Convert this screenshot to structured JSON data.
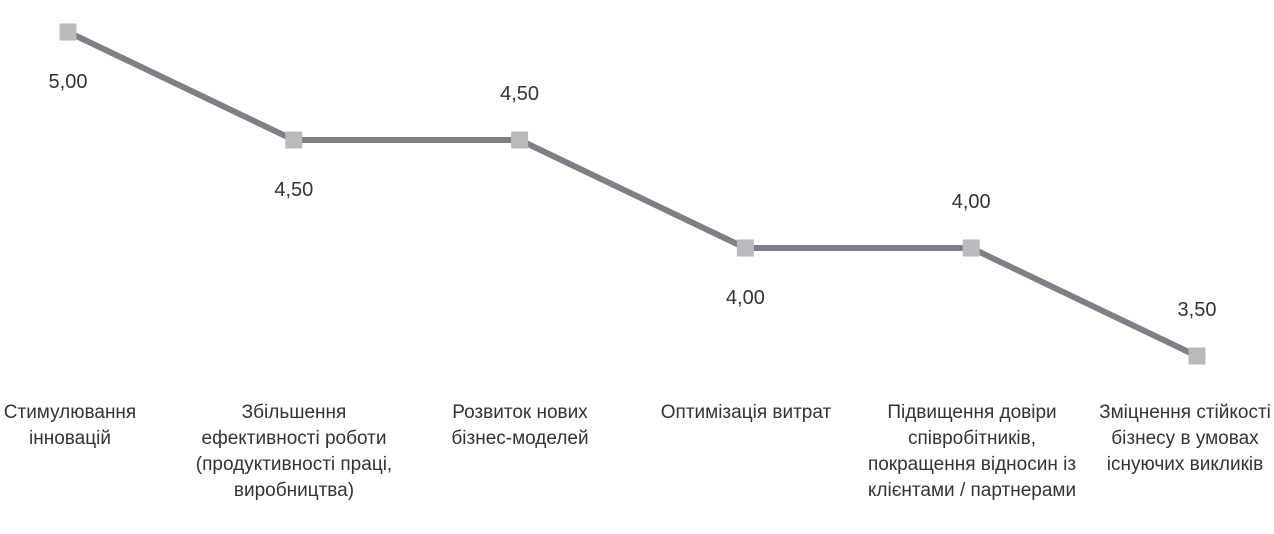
{
  "chart_data": {
    "type": "line",
    "title": "",
    "xlabel": "",
    "ylabel": "",
    "categories": [
      "Стимулювання\nінновацій",
      "Збільшення\nефективності роботи\n(продуктивності праці,\nвиробництва)",
      "Розвиток нових\nбізнес-моделей",
      "Оптимізація витрат",
      "Підвищення довіри\nспівробітників,\nпокращення відносин із\nклієнтами / партнерами",
      "Зміцнення стійкості\nбізнесу в умовах\nіснуючих викликів"
    ],
    "values": [
      5.0,
      4.5,
      4.5,
      4.0,
      4.0,
      3.5
    ],
    "value_labels": [
      "5,00",
      "4,50",
      "4,50",
      "4,00",
      "4,00",
      "3,50"
    ],
    "label_position": [
      "below",
      "below",
      "above",
      "below",
      "above",
      "above"
    ],
    "ylim": [
      3.5,
      5.0
    ],
    "grid": false,
    "legend": "none",
    "colors": {
      "line": "#7f7f87",
      "marker": "#b9babe",
      "text": "#333333"
    }
  }
}
